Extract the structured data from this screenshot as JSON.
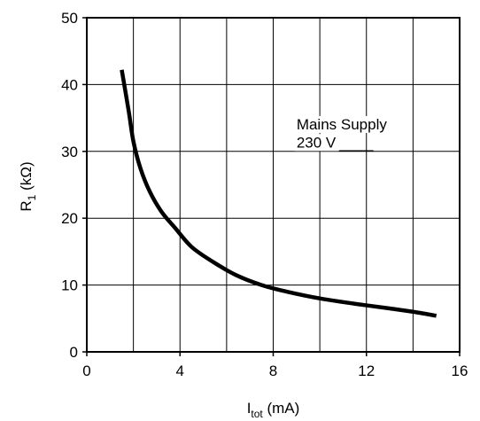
{
  "chart_data": {
    "type": "line",
    "xlabel": {
      "main": "I",
      "sub": "tot",
      "suffix": " (mA)"
    },
    "ylabel": {
      "main": "R",
      "sub": "1",
      "suffix": " (kΩ)"
    },
    "xlim": [
      0,
      16
    ],
    "ylim": [
      0,
      50
    ],
    "xticks": [
      0,
      4,
      8,
      12,
      16
    ],
    "yticks": [
      0,
      10,
      20,
      30,
      40,
      50
    ],
    "grid": true,
    "annotation": [
      "Mains Supply",
      "230 V"
    ],
    "series": [
      {
        "x": [
          1.5,
          1.8,
          2.0,
          2.3,
          2.7,
          3.2,
          3.8,
          4.5,
          5.4,
          6.4,
          7.5,
          8.6,
          10.0,
          11.5,
          13.0,
          14.0,
          15.0
        ],
        "y": [
          42.2,
          36.0,
          31.5,
          27.5,
          24.0,
          21.0,
          18.5,
          15.7,
          13.5,
          11.5,
          10.0,
          9.0,
          8.0,
          7.2,
          6.5,
          6.0,
          5.4
        ]
      }
    ],
    "colors": {
      "line": "#000000",
      "grid": "#000000",
      "background": "#ffffff"
    }
  }
}
